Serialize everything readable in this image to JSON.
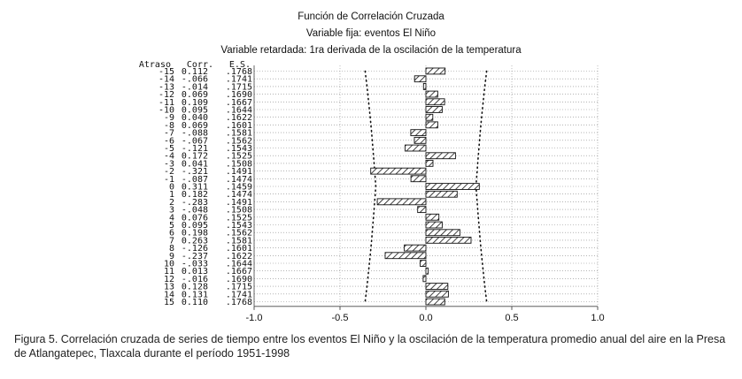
{
  "chart_data": {
    "type": "bar",
    "title": "Función de Correlación Cruzada",
    "subtitle_1": "Variable fija: eventos El Niño",
    "subtitle_2": "Variable retardada: 1ra derivada de la oscilación de la temperatura",
    "column_headers": {
      "lag": "Atraso",
      "corr": "Corr.",
      "se": "E.S."
    },
    "rows": [
      {
        "lag": "-15",
        "corr": "0.112",
        "se": ".1768",
        "value": 0.112,
        "se_value": 0.1768
      },
      {
        "lag": "-14",
        "corr": "-.066",
        "se": ".1741",
        "value": -0.066,
        "se_value": 0.1741
      },
      {
        "lag": "-13",
        "corr": "-.014",
        "se": ".1715",
        "value": -0.014,
        "se_value": 0.1715
      },
      {
        "lag": "-12",
        "corr": "0.069",
        "se": ".1690",
        "value": 0.069,
        "se_value": 0.169
      },
      {
        "lag": "-11",
        "corr": "0.109",
        "se": ".1667",
        "value": 0.109,
        "se_value": 0.1667
      },
      {
        "lag": "-10",
        "corr": "0.095",
        "se": ".1644",
        "value": 0.095,
        "se_value": 0.1644
      },
      {
        "lag": "-9",
        "corr": "0.040",
        "se": ".1622",
        "value": 0.04,
        "se_value": 0.1622
      },
      {
        "lag": "-8",
        "corr": "0.069",
        "se": ".1601",
        "value": 0.069,
        "se_value": 0.1601
      },
      {
        "lag": "-7",
        "corr": "-.088",
        "se": ".1581",
        "value": -0.088,
        "se_value": 0.1581
      },
      {
        "lag": "-6",
        "corr": "-.067",
        "se": ".1562",
        "value": -0.067,
        "se_value": 0.1562
      },
      {
        "lag": "-5",
        "corr": "-.121",
        "se": ".1543",
        "value": -0.121,
        "se_value": 0.1543
      },
      {
        "lag": "-4",
        "corr": "0.172",
        "se": ".1525",
        "value": 0.172,
        "se_value": 0.1525
      },
      {
        "lag": "-3",
        "corr": "0.041",
        "se": ".1508",
        "value": 0.041,
        "se_value": 0.1508
      },
      {
        "lag": "-2",
        "corr": "-.321",
        "se": ".1491",
        "value": -0.321,
        "se_value": 0.1491
      },
      {
        "lag": "-1",
        "corr": "-.087",
        "se": ".1474",
        "value": -0.087,
        "se_value": 0.1474
      },
      {
        "lag": "0",
        "corr": "0.311",
        "se": ".1459",
        "value": 0.311,
        "se_value": 0.1459
      },
      {
        "lag": "1",
        "corr": "0.182",
        "se": ".1474",
        "value": 0.182,
        "se_value": 0.1474
      },
      {
        "lag": "2",
        "corr": "-.283",
        "se": ".1491",
        "value": -0.283,
        "se_value": 0.1491
      },
      {
        "lag": "3",
        "corr": "-.048",
        "se": ".1508",
        "value": -0.048,
        "se_value": 0.1508
      },
      {
        "lag": "4",
        "corr": "0.076",
        "se": ".1525",
        "value": 0.076,
        "se_value": 0.1525
      },
      {
        "lag": "5",
        "corr": "0.095",
        "se": ".1543",
        "value": 0.095,
        "se_value": 0.1543
      },
      {
        "lag": "6",
        "corr": "0.198",
        "se": ".1562",
        "value": 0.198,
        "se_value": 0.1562
      },
      {
        "lag": "7",
        "corr": "0.263",
        "se": ".1581",
        "value": 0.263,
        "se_value": 0.1581
      },
      {
        "lag": "8",
        "corr": "-.126",
        "se": ".1601",
        "value": -0.126,
        "se_value": 0.1601
      },
      {
        "lag": "9",
        "corr": "-.237",
        "se": ".1622",
        "value": -0.237,
        "se_value": 0.1622
      },
      {
        "lag": "10",
        "corr": "-.033",
        "se": ".1644",
        "value": -0.033,
        "se_value": 0.1644
      },
      {
        "lag": "11",
        "corr": "0.013",
        "se": ".1667",
        "value": 0.013,
        "se_value": 0.1667
      },
      {
        "lag": "12",
        "corr": "-.016",
        "se": ".1690",
        "value": -0.016,
        "se_value": 0.169
      },
      {
        "lag": "13",
        "corr": "0.128",
        "se": ".1715",
        "value": 0.128,
        "se_value": 0.1715
      },
      {
        "lag": "14",
        "corr": "0.131",
        "se": ".1741",
        "value": 0.131,
        "se_value": 0.1741
      },
      {
        "lag": "15",
        "corr": "0.110",
        "se": ".1768",
        "value": 0.11,
        "se_value": 0.1768
      }
    ],
    "xlim": [
      -1.0,
      1.0
    ],
    "x_ticks": [
      "-1.0",
      "-0.5",
      "0.0",
      "0.5",
      "1.0"
    ],
    "x_tick_values": [
      -1.0,
      -0.5,
      0.0,
      0.5,
      1.0
    ],
    "confidence_band_multiplier": 2,
    "grid": true,
    "bar_pattern": "diagonal-hatch",
    "colors": {
      "bar_stroke": "#111111",
      "grid": "#888888",
      "axis": "#444444"
    }
  },
  "caption": "Figura 5. Correlación cruzada de series de tiempo entre los eventos El Niño y la oscilación de la temperatura promedio anual del aire en la Presa de Atlangatepec, Tlaxcala durante el período 1951-1998"
}
